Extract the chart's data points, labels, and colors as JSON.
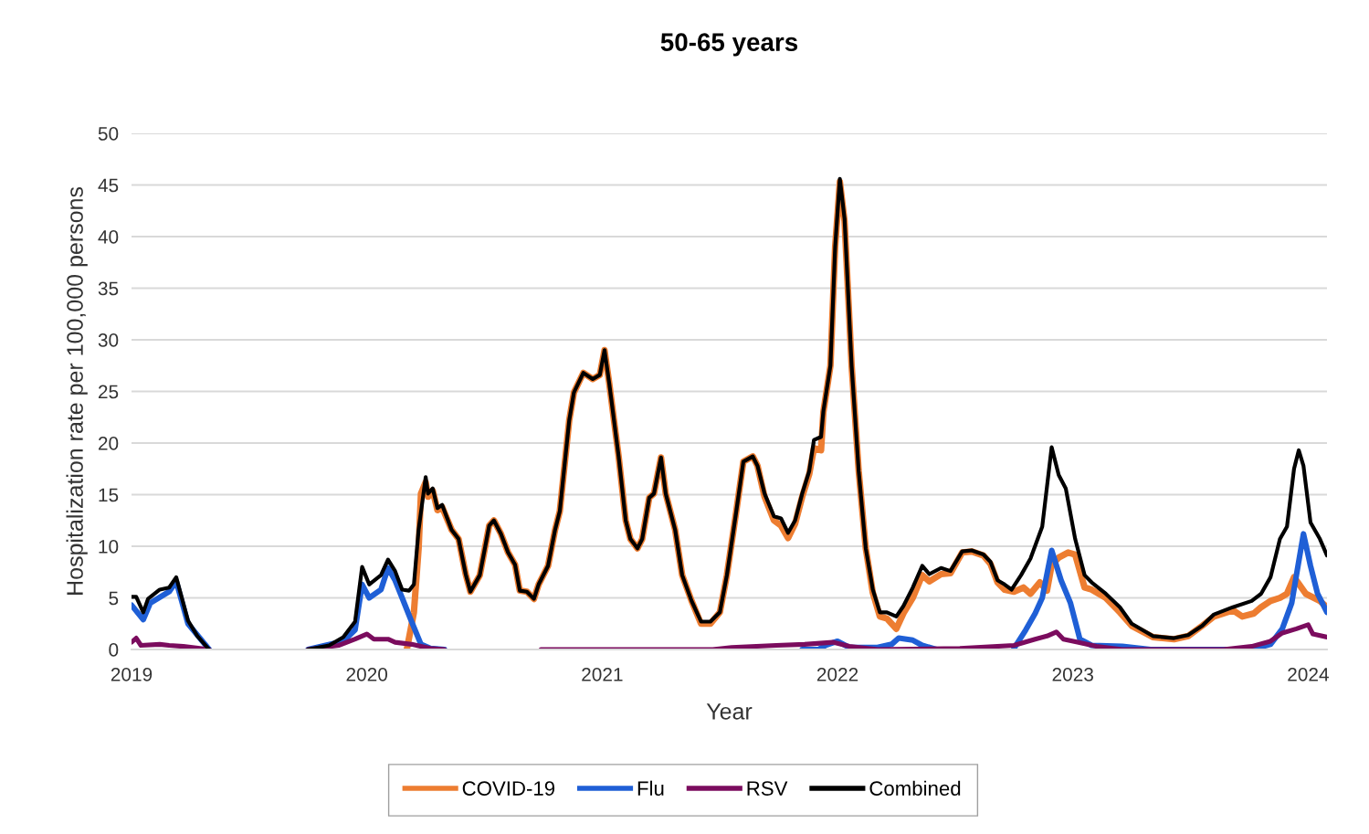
{
  "chart_data": {
    "type": "line",
    "title": "50-65 years",
    "xlabel": "Year",
    "ylabel": "Hospitalization rate per 100,000 persons",
    "xlim": [
      2019,
      2024.08
    ],
    "xticks": [
      2019,
      2020,
      2021,
      2022,
      2023,
      2024
    ],
    "ylim": [
      0,
      50
    ],
    "yticks": [
      0,
      5,
      10,
      15,
      20,
      25,
      30,
      35,
      40,
      45,
      50
    ],
    "grid": "y",
    "legend": "bottom",
    "marker": "none",
    "line_style": "solid",
    "series": [
      {
        "name": "COVID-19",
        "color": "#ed7d31",
        "x": [
          2020.17,
          2020.2,
          2020.22,
          2020.23,
          2020.25,
          2020.26,
          2020.28,
          2020.3,
          2020.32,
          2020.36,
          2020.39,
          2020.42,
          2020.44,
          2020.48,
          2020.52,
          2020.54,
          2020.57,
          2020.6,
          2020.63,
          2020.65,
          2020.68,
          2020.71,
          2020.73,
          2020.77,
          2020.8,
          2020.82,
          2020.86,
          2020.88,
          2020.92,
          2020.96,
          2020.99,
          2021.01,
          2021.03,
          2021.07,
          2021.1,
          2021.12,
          2021.15,
          2021.17,
          2021.2,
          2021.22,
          2021.25,
          2021.27,
          2021.31,
          2021.34,
          2021.38,
          2021.42,
          2021.46,
          2021.5,
          2021.53,
          2021.57,
          2021.6,
          2021.64,
          2021.66,
          2021.69,
          2021.73,
          2021.76,
          2021.79,
          2021.82,
          2021.85,
          2021.88,
          2021.9,
          2021.93,
          2021.94,
          2021.97,
          2021.99,
          2022.01,
          2022.03,
          2022.06,
          2022.09,
          2022.12,
          2022.15,
          2022.18,
          2022.21,
          2022.25,
          2022.28,
          2022.32,
          2022.36,
          2022.39,
          2022.44,
          2022.48,
          2022.53,
          2022.57,
          2022.62,
          2022.65,
          2022.68,
          2022.71,
          2022.75,
          2022.79,
          2022.82,
          2022.86,
          2022.89,
          2022.91,
          2022.94,
          2022.98,
          2023.01,
          2023.05,
          2023.08,
          2023.14,
          2023.2,
          2023.25,
          2023.34,
          2023.43,
          2023.49,
          2023.55,
          2023.6,
          2023.68,
          2023.72,
          2023.77,
          2023.8,
          2023.84,
          2023.88,
          2023.91,
          2023.94,
          2023.99,
          2024.05,
          2024.08
        ],
        "values": [
          0,
          3.6,
          9.8,
          15.1,
          16.2,
          14.8,
          15.4,
          13.5,
          13.8,
          11.6,
          10.7,
          7.3,
          5.6,
          7.2,
          12.0,
          12.5,
          11.2,
          9.4,
          8.2,
          5.7,
          5.6,
          4.9,
          6.3,
          8.1,
          11.6,
          13.4,
          22.2,
          24.9,
          26.8,
          26.2,
          26.6,
          29.0,
          25.8,
          18.7,
          12.5,
          10.7,
          9.8,
          10.7,
          14.7,
          15.1,
          18.6,
          15.1,
          11.6,
          7.2,
          4.7,
          2.5,
          2.5,
          3.6,
          7.2,
          13.4,
          18.2,
          18.7,
          17.8,
          14.8,
          12.5,
          12.0,
          10.8,
          12.2,
          14.8,
          17.0,
          19.5,
          19.3,
          23.0,
          27.5,
          39.0,
          45.3,
          41.5,
          27.5,
          17.3,
          9.8,
          5.5,
          3.2,
          3.0,
          2.0,
          3.5,
          5.0,
          7.2,
          6.6,
          7.3,
          7.4,
          9.4,
          9.5,
          9.1,
          8.3,
          6.5,
          5.8,
          5.6,
          6.0,
          5.4,
          6.5,
          5.7,
          8.2,
          8.9,
          9.4,
          9.2,
          6.0,
          5.8,
          5.0,
          3.6,
          2.3,
          1.2,
          1.0,
          1.3,
          2.3,
          3.2,
          3.8,
          3.2,
          3.5,
          4.1,
          4.7,
          5.0,
          5.4,
          7.0,
          5.4,
          4.7,
          4.1
        ]
      },
      {
        "name": "Flu",
        "color": "#1f5fd6",
        "x": [
          2019.0,
          2019.05,
          2019.08,
          2019.16,
          2019.19,
          2019.24,
          2019.33,
          2019.5,
          2019.75,
          2019.9,
          2019.95,
          2019.98,
          2020.01,
          2020.06,
          2020.09,
          2020.12,
          2020.15,
          2020.19,
          2020.23,
          2020.27,
          2020.33,
          2021.5,
          2021.85,
          2021.92,
          2021.95,
          2022.0,
          2022.05,
          2022.17,
          2022.23,
          2022.26,
          2022.32,
          2022.36,
          2022.42,
          2022.6,
          2022.75,
          2022.8,
          2022.84,
          2022.87,
          2022.91,
          2022.95,
          2022.99,
          2023.03,
          2023.08,
          2023.21,
          2023.33,
          2023.5,
          2023.76,
          2023.84,
          2023.89,
          2023.93,
          2023.95,
          2023.98,
          2024.01,
          2024.04,
          2024.08
        ],
        "values": [
          4.3,
          2.9,
          4.5,
          5.6,
          6.6,
          2.5,
          0,
          null,
          0,
          0.8,
          1.9,
          6.3,
          5.0,
          5.8,
          7.9,
          6.7,
          5.0,
          2.7,
          0.5,
          0.1,
          0,
          null,
          0,
          0,
          0.4,
          0.8,
          0.2,
          0.2,
          0.5,
          1.1,
          0.9,
          0.4,
          0,
          null,
          0.1,
          1.9,
          3.5,
          5.0,
          9.6,
          6.7,
          4.5,
          1.0,
          0.4,
          0.3,
          0,
          0,
          0,
          0.5,
          2.0,
          4.5,
          7.2,
          11.2,
          8.1,
          5.4,
          3.6
        ]
      },
      {
        "name": "RSV",
        "color": "#7b0c5e",
        "x": [
          2019.0,
          2019.02,
          2019.04,
          2019.12,
          2019.16,
          2019.22,
          2019.33,
          2019.5,
          2019.75,
          2019.88,
          2019.95,
          2020.0,
          2020.03,
          2020.09,
          2020.12,
          2020.19,
          2020.27,
          2020.33,
          2020.5,
          2020.74,
          2021.47,
          2021.55,
          2021.74,
          2021.86,
          2021.98,
          2022.05,
          2022.17,
          2022.52,
          2022.75,
          2022.84,
          2022.89,
          2022.93,
          2022.96,
          2023.02,
          2023.1,
          2023.21,
          2023.64,
          2023.76,
          2023.84,
          2023.89,
          2023.95,
          2024.0,
          2024.02,
          2024.08
        ],
        "values": [
          0.7,
          1.1,
          0.4,
          0.5,
          0.4,
          0.3,
          0,
          null,
          0,
          0.4,
          1.0,
          1.5,
          1.0,
          1.0,
          0.7,
          0.5,
          0.1,
          0,
          null,
          0,
          0,
          0.2,
          0.4,
          0.5,
          0.7,
          0.3,
          0,
          0.1,
          0.4,
          1.0,
          1.3,
          1.7,
          1.0,
          0.7,
          0.3,
          0,
          0,
          0.3,
          0.8,
          1.6,
          2.0,
          2.4,
          1.5,
          1.2
        ]
      },
      {
        "name": "Combined",
        "color": "#000000",
        "x": [
          2019.0,
          2019.02,
          2019.05,
          2019.07,
          2019.12,
          2019.16,
          2019.19,
          2019.24,
          2019.28,
          2019.33,
          2019.5,
          2019.75,
          2019.84,
          2019.9,
          2019.95,
          2019.98,
          2020.01,
          2020.06,
          2020.09,
          2020.12,
          2020.15,
          2020.18,
          2020.2,
          2020.22,
          2020.25,
          2020.26,
          2020.28,
          2020.3,
          2020.32,
          2020.36,
          2020.39,
          2020.42,
          2020.44,
          2020.48,
          2020.52,
          2020.54,
          2020.57,
          2020.6,
          2020.63,
          2020.65,
          2020.68,
          2020.71,
          2020.73,
          2020.77,
          2020.8,
          2020.82,
          2020.86,
          2020.88,
          2020.92,
          2020.96,
          2020.99,
          2021.01,
          2021.03,
          2021.07,
          2021.1,
          2021.12,
          2021.15,
          2021.17,
          2021.2,
          2021.22,
          2021.25,
          2021.27,
          2021.31,
          2021.34,
          2021.38,
          2021.42,
          2021.46,
          2021.5,
          2021.53,
          2021.57,
          2021.6,
          2021.64,
          2021.66,
          2021.69,
          2021.73,
          2021.76,
          2021.79,
          2021.82,
          2021.85,
          2021.88,
          2021.9,
          2021.93,
          2021.94,
          2021.97,
          2021.99,
          2022.01,
          2022.03,
          2022.06,
          2022.09,
          2022.12,
          2022.15,
          2022.18,
          2022.21,
          2022.25,
          2022.28,
          2022.32,
          2022.36,
          2022.39,
          2022.44,
          2022.48,
          2022.53,
          2022.57,
          2022.62,
          2022.65,
          2022.68,
          2022.71,
          2022.74,
          2022.78,
          2022.82,
          2022.87,
          2022.91,
          2022.94,
          2022.97,
          2023.01,
          2023.05,
          2023.08,
          2023.14,
          2023.2,
          2023.25,
          2023.34,
          2023.43,
          2023.49,
          2023.55,
          2023.6,
          2023.68,
          2023.76,
          2023.8,
          2023.84,
          2023.88,
          2023.91,
          2023.94,
          2023.96,
          2023.98,
          2024.01,
          2024.05,
          2024.08
        ],
        "values": [
          5.1,
          5.1,
          3.6,
          4.9,
          5.8,
          6.0,
          7.0,
          2.8,
          1.3,
          0,
          null,
          0,
          0.4,
          1.2,
          2.7,
          8.0,
          6.3,
          7.2,
          8.7,
          7.6,
          5.8,
          5.7,
          6.3,
          11.6,
          16.7,
          15.1,
          15.6,
          13.7,
          14.0,
          11.6,
          10.7,
          7.3,
          5.6,
          7.2,
          12.0,
          12.5,
          11.2,
          9.4,
          8.2,
          5.7,
          5.6,
          4.9,
          6.3,
          8.1,
          11.6,
          13.4,
          22.2,
          24.9,
          26.8,
          26.2,
          26.6,
          29.0,
          25.8,
          18.7,
          12.5,
          10.7,
          9.8,
          10.7,
          14.7,
          15.1,
          18.6,
          15.1,
          11.6,
          7.2,
          4.7,
          2.7,
          2.7,
          3.6,
          7.2,
          13.4,
          18.2,
          18.7,
          17.8,
          15.1,
          12.9,
          12.7,
          11.3,
          12.5,
          15.1,
          17.3,
          20.3,
          20.6,
          23.1,
          27.5,
          39.0,
          45.6,
          41.7,
          27.5,
          17.3,
          9.8,
          5.8,
          3.6,
          3.6,
          3.2,
          4.2,
          6.0,
          8.1,
          7.3,
          7.9,
          7.6,
          9.5,
          9.6,
          9.2,
          8.5,
          6.7,
          6.3,
          5.8,
          7.2,
          8.8,
          11.9,
          19.6,
          16.9,
          15.6,
          10.7,
          7.2,
          6.5,
          5.4,
          4.1,
          2.5,
          1.3,
          1.1,
          1.4,
          2.3,
          3.4,
          4.1,
          4.7,
          5.4,
          7.0,
          10.7,
          11.9,
          17.5,
          19.3,
          17.8,
          12.3,
          10.7,
          9.1
        ]
      }
    ]
  }
}
